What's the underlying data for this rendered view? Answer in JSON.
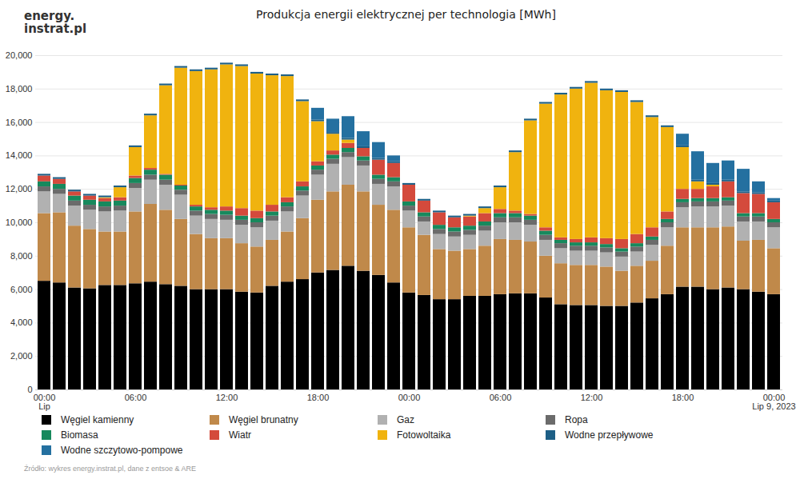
{
  "chart_data": {
    "type": "bar",
    "title": "Produkcja energii elektrycznej per technologia [MWh]",
    "logo": [
      "energy.",
      "instrat.pl"
    ],
    "source": "Źródło: wykres energy.instrat.pl, dane z entsoe & ARE",
    "stacked": true,
    "grid": true,
    "legend": "bottom",
    "categories": [
      "00:00\nLip",
      null,
      null,
      null,
      null,
      null,
      "06:00",
      null,
      null,
      null,
      null,
      null,
      "12:00",
      null,
      null,
      null,
      null,
      null,
      "18:00",
      null,
      null,
      null,
      null,
      null,
      "00:00",
      null,
      null,
      null,
      null,
      null,
      "06:00",
      null,
      null,
      null,
      null,
      null,
      "12:00",
      null,
      null,
      null,
      null,
      null,
      "18:00",
      null,
      null,
      null,
      null,
      null,
      "00:00\nLip 9, 2023"
    ],
    "ylim": [
      0,
      20000
    ],
    "yticks": [
      0,
      2000,
      4000,
      6000,
      8000,
      10000,
      12000,
      14000,
      16000,
      18000,
      20000
    ],
    "series": [
      {
        "name": "Węgiel kamienny",
        "color": "#000000",
        "values": [
          6500,
          6400,
          6100,
          6050,
          6250,
          6250,
          6350,
          6450,
          6300,
          6200,
          6000,
          6000,
          6000,
          5850,
          5800,
          6200,
          6450,
          6600,
          7000,
          7150,
          7400,
          7100,
          6850,
          6400,
          5800,
          5650,
          5400,
          5400,
          5600,
          5600,
          5700,
          5750,
          5750,
          5500,
          5100,
          5050,
          5050,
          5000,
          5000,
          5200,
          5450,
          5700,
          6150,
          6150,
          6000,
          6100,
          6000,
          5850,
          5700
        ]
      },
      {
        "name": "Węgiel brunatny",
        "color": "#c0894a",
        "values": [
          4050,
          4200,
          3700,
          3550,
          3200,
          3200,
          4300,
          4650,
          4450,
          4000,
          3300,
          3050,
          3050,
          2900,
          2750,
          2750,
          3000,
          3650,
          4350,
          4700,
          4850,
          4750,
          4200,
          4350,
          3900,
          3600,
          3000,
          2900,
          2800,
          3000,
          3300,
          3200,
          3100,
          2500,
          2450,
          2400,
          2400,
          2350,
          2100,
          2200,
          2250,
          2900,
          3550,
          3550,
          3700,
          3650,
          2900,
          3100,
          2750
        ]
      },
      {
        "name": "Gaz",
        "color": "#b1b1b1",
        "values": [
          1300,
          1100,
          1200,
          1150,
          1200,
          1250,
          1400,
          1450,
          1500,
          1450,
          1100,
          1150,
          1100,
          1100,
          1150,
          1150,
          1200,
          1350,
          1500,
          1650,
          1650,
          1550,
          1250,
          1400,
          1000,
          800,
          900,
          850,
          850,
          900,
          1000,
          1050,
          1000,
          950,
          900,
          850,
          850,
          850,
          850,
          850,
          950,
          1100,
          1200,
          1250,
          1250,
          1250,
          1150,
          1100,
          1250
        ]
      },
      {
        "name": "Ropa",
        "color": "#6b6b6b",
        "values": [
          300,
          300,
          300,
          300,
          300,
          300,
          300,
          300,
          300,
          300,
          300,
          300,
          300,
          300,
          300,
          300,
          300,
          300,
          300,
          300,
          300,
          300,
          300,
          300,
          300,
          300,
          300,
          300,
          300,
          300,
          300,
          300,
          300,
          300,
          300,
          300,
          300,
          300,
          300,
          300,
          300,
          300,
          300,
          300,
          300,
          300,
          300,
          300,
          300
        ]
      },
      {
        "name": "Biomasa",
        "color": "#17895d",
        "values": [
          300,
          300,
          300,
          300,
          300,
          300,
          300,
          300,
          300,
          250,
          250,
          250,
          250,
          250,
          250,
          250,
          250,
          250,
          250,
          250,
          250,
          250,
          250,
          250,
          250,
          250,
          250,
          250,
          250,
          250,
          250,
          250,
          250,
          250,
          200,
          200,
          200,
          200,
          200,
          200,
          200,
          200,
          200,
          200,
          200,
          200,
          200,
          200,
          200
        ]
      },
      {
        "name": "Wiatr",
        "color": "#d44a3c",
        "values": [
          350,
          300,
          250,
          250,
          200,
          200,
          150,
          100,
          50,
          50,
          100,
          150,
          250,
          450,
          450,
          400,
          300,
          300,
          250,
          250,
          300,
          500,
          900,
          850,
          1000,
          700,
          750,
          600,
          550,
          500,
          250,
          150,
          100,
          200,
          150,
          200,
          300,
          350,
          550,
          550,
          550,
          450,
          600,
          550,
          700,
          950,
          1200,
          1150,
          1000
        ]
      },
      {
        "name": "Fotowoltaika",
        "color": "#f0b30f",
        "values": [
          0,
          0,
          0,
          0,
          50,
          600,
          1700,
          3150,
          5300,
          7000,
          8000,
          8250,
          8500,
          8500,
          8200,
          7750,
          7250,
          4800,
          2400,
          1000,
          200,
          0,
          0,
          0,
          0,
          0,
          0,
          0,
          50,
          300,
          1300,
          3500,
          5600,
          7400,
          8550,
          9000,
          9250,
          8850,
          8800,
          7900,
          6600,
          5050,
          2500,
          450,
          100,
          0,
          0,
          0,
          0
        ]
      },
      {
        "name": "Wodne przepływowe",
        "color": "#1d5f86",
        "values": [
          100,
          100,
          100,
          100,
          100,
          100,
          100,
          100,
          100,
          100,
          100,
          100,
          100,
          100,
          100,
          100,
          100,
          100,
          100,
          100,
          100,
          100,
          100,
          100,
          100,
          100,
          100,
          100,
          100,
          100,
          100,
          100,
          100,
          100,
          100,
          100,
          100,
          100,
          100,
          100,
          100,
          100,
          100,
          100,
          100,
          100,
          100,
          100,
          100
        ]
      },
      {
        "name": "Wodne szczytowo-pompowe",
        "color": "#2470a0",
        "values": [
          0,
          0,
          0,
          0,
          0,
          0,
          0,
          0,
          0,
          0,
          0,
          0,
          0,
          0,
          0,
          0,
          0,
          0,
          700,
          800,
          1300,
          900,
          950,
          350,
          0,
          0,
          0,
          0,
          0,
          0,
          0,
          0,
          0,
          0,
          0,
          0,
          0,
          0,
          0,
          0,
          0,
          0,
          700,
          1700,
          1200,
          1150,
          1350,
          650,
          150
        ]
      }
    ]
  }
}
